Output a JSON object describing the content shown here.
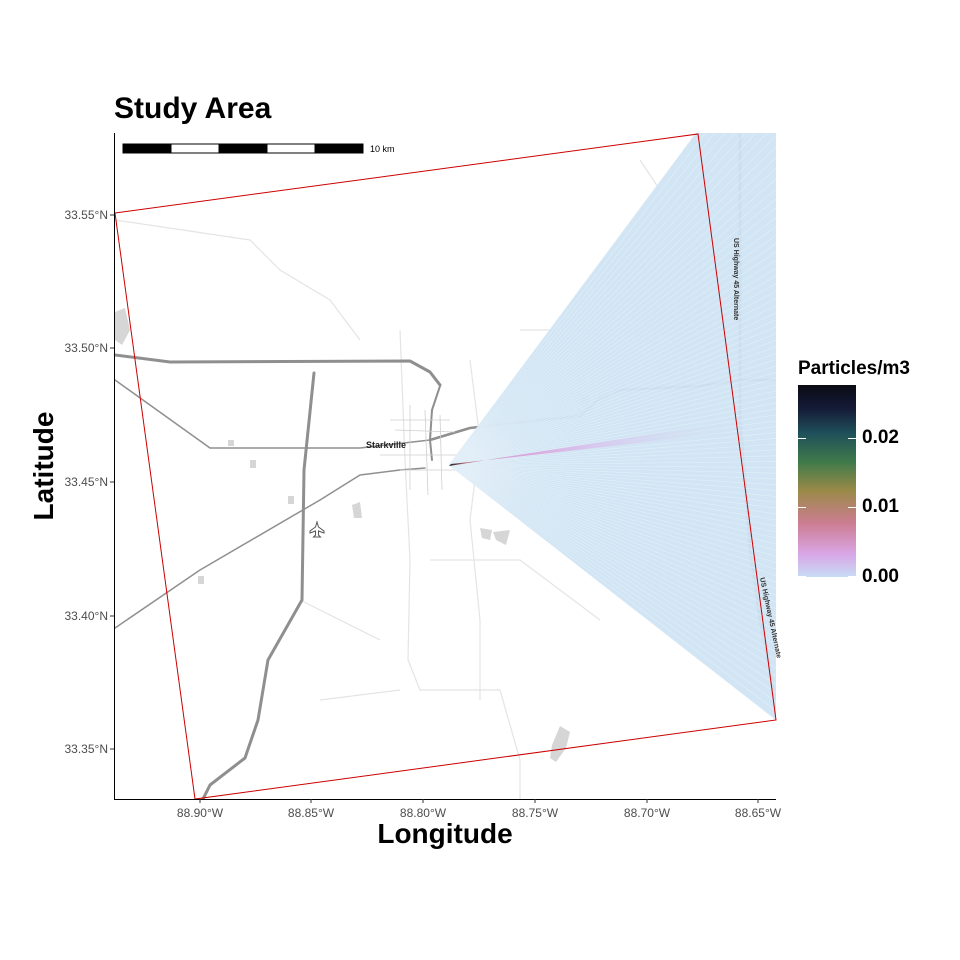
{
  "title": "Study Area",
  "axes": {
    "xlabel": "Longitude",
    "ylabel": "Latitude",
    "x_ticks": [
      "88.90°W",
      "88.85°W",
      "88.80°W",
      "88.75°W",
      "88.70°W",
      "88.65°W"
    ],
    "y_ticks": [
      "33.55°N",
      "33.50°N",
      "33.45°N",
      "33.40°N",
      "33.35°N"
    ]
  },
  "scale_bar": {
    "label": "10 km"
  },
  "map_labels": {
    "city": "Starkville",
    "highway_north": "US Highway 45 Alternate",
    "highway_south": "US Highway 45 Alternate"
  },
  "legend": {
    "title": "Particles/m3",
    "labels": [
      "0.02",
      "0.01",
      "0.00"
    ]
  },
  "colors": {
    "domain_outline": "#cc0000",
    "plume_fill": "#cfe4f3",
    "road_major": "#8c8c8c",
    "road_minor": "#dddddd"
  },
  "icons": [
    "airport-icon"
  ]
}
